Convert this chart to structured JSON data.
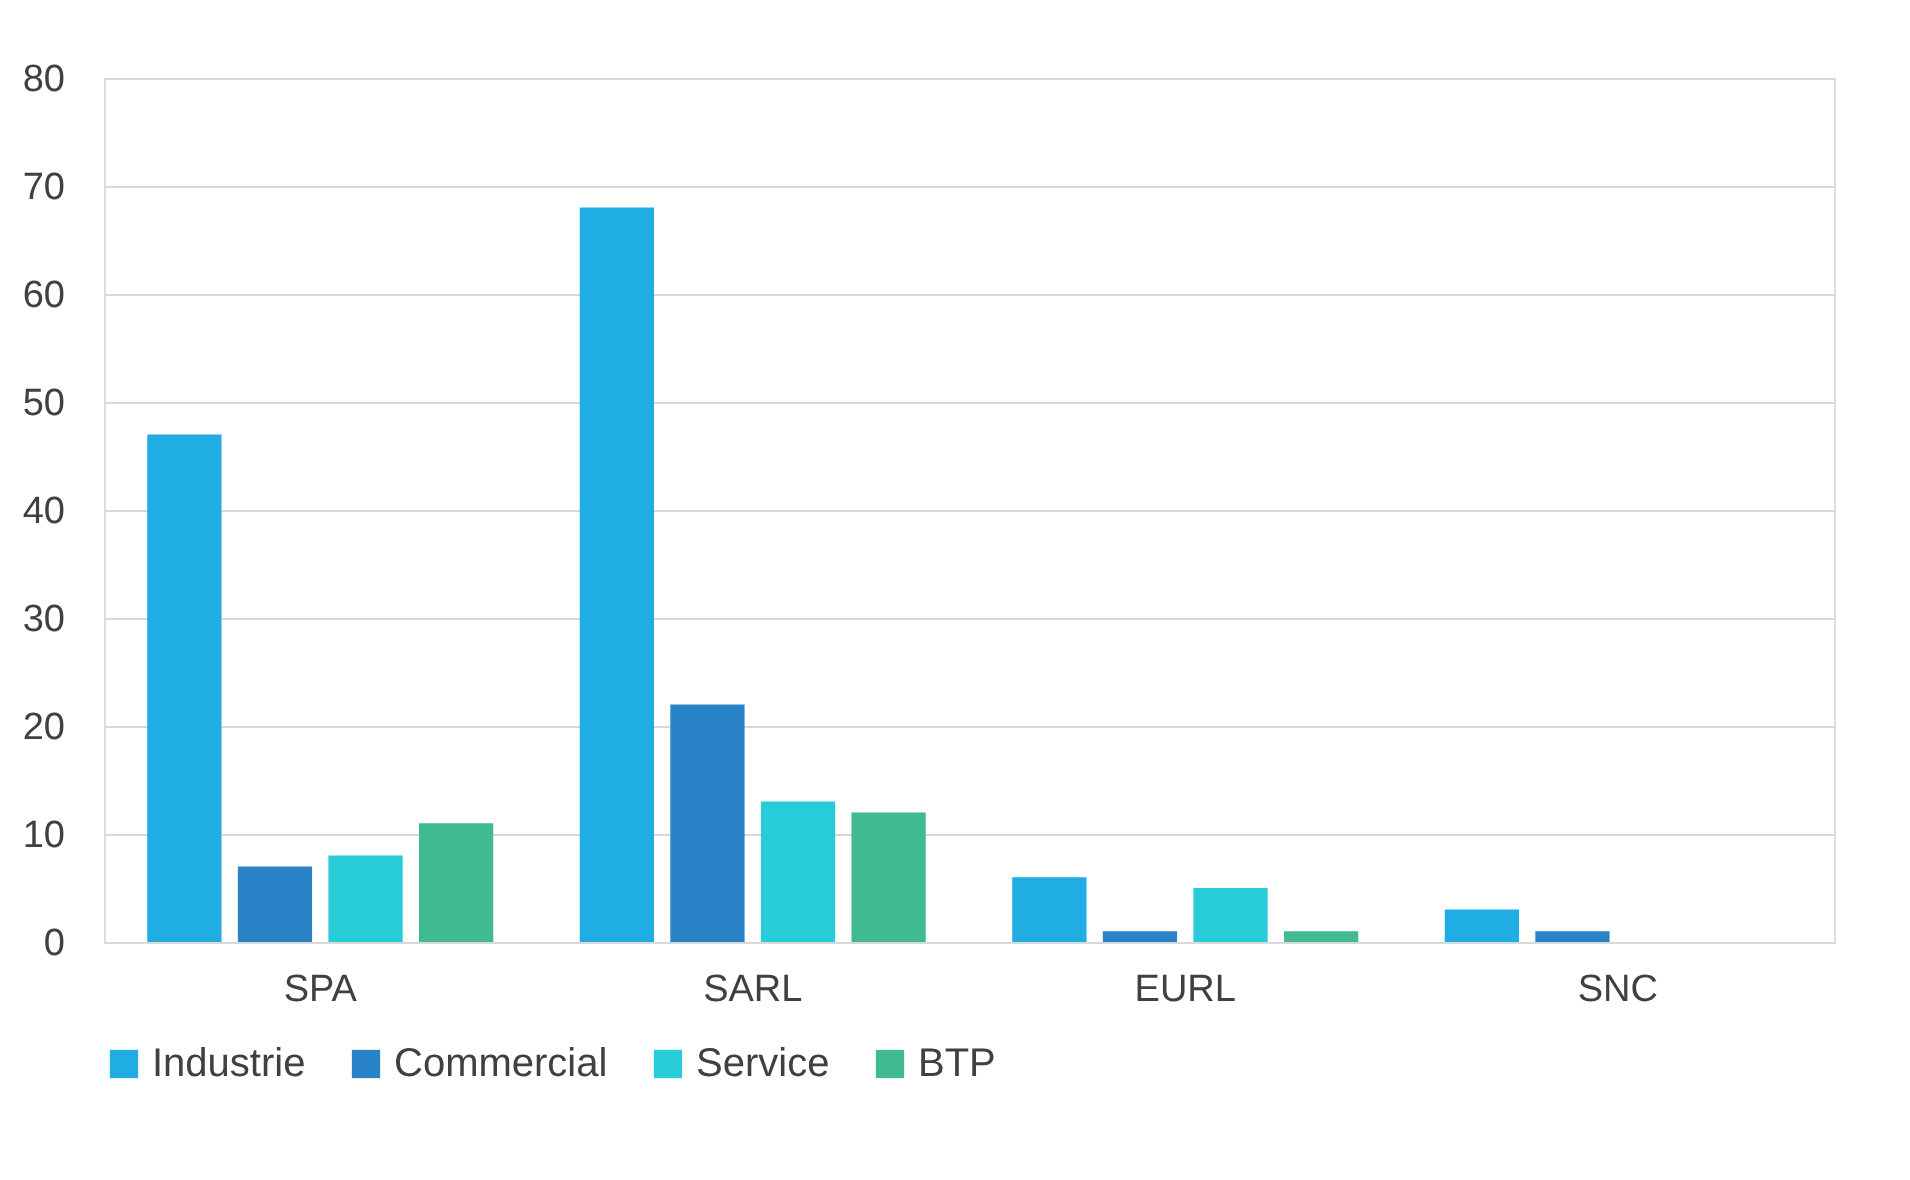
{
  "chart_data": {
    "type": "bar",
    "categories": [
      "SPA",
      "SARL",
      "EURL",
      "SNC"
    ],
    "series": [
      {
        "name": "Industrie",
        "color": "#1fade4",
        "values": [
          47,
          68,
          6,
          3
        ]
      },
      {
        "name": "Commercial",
        "color": "#2a83c6",
        "values": [
          7,
          22,
          1,
          1
        ]
      },
      {
        "name": "Service",
        "color": "#27ccd8",
        "values": [
          8,
          13,
          5,
          0
        ]
      },
      {
        "name": "BTP",
        "color": "#3fba93",
        "values": [
          11,
          12,
          1,
          0
        ]
      }
    ],
    "ylim": [
      0,
      80
    ],
    "yticks": [
      0,
      10,
      20,
      30,
      40,
      50,
      60,
      70,
      80
    ],
    "grid": "y",
    "legend": "bottom"
  }
}
